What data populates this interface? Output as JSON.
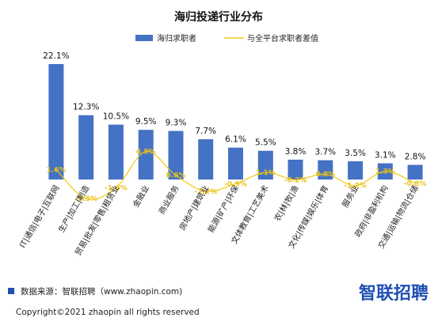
{
  "chart_data": {
    "type": "bar",
    "title": "海归投递行业分布",
    "categories": [
      "IT|通信|电子|互联网",
      "生产|加工|制造",
      "贸易|批发|零售|租赁业",
      "金融业",
      "商业服务",
      "房地产|建筑业",
      "能源|矿产|环保",
      "文体教育|工艺美术",
      "农|林|牧|渔",
      "文化|传媒|娱乐|体育",
      "服务业",
      "政府|非盈利机构",
      "交通|运输|物流|仓储"
    ],
    "series": [
      {
        "name": "海归求职者",
        "values": [
          22.1,
          12.3,
          10.5,
          9.5,
          9.3,
          7.7,
          6.1,
          5.5,
          3.8,
          3.7,
          3.5,
          3.1,
          2.8
        ],
        "labels": [
          "22.1%",
          "12.3%",
          "10.5%",
          "9.5%",
          "9.3%",
          "7.7%",
          "6.1%",
          "5.5%",
          "3.8%",
          "3.7%",
          "3.5%",
          "3.1%",
          "2.8%"
        ]
      },
      {
        "name": "与全平台求职者差值",
        "values": [
          1.6,
          -3.5,
          -1.6,
          4.8,
          0.6,
          -2.2,
          -0.9,
          1.1,
          -0.2,
          0.8,
          -1.2,
          1.3,
          -0.8
        ],
        "labels": [
          "1.6%",
          "-3.5%",
          "-1.6%",
          "4.8%",
          "0.6%",
          "-2.2%",
          "-0.9%",
          "1.1%",
          "-0.2%",
          "0.8%",
          "-1.2%",
          "1.3%",
          "-0.8%"
        ]
      }
    ],
    "colors": {
      "bars": "#4472c4",
      "line": "#f2c811",
      "line_labels": "#e8c21a"
    },
    "legend_position": "top",
    "grid": false
  },
  "footer": {
    "source": "数据来源：智联招聘（www.zhaopin.com)",
    "copyright": "Copyright©2021 zhaopin all rights reserved",
    "logo": "智联招聘"
  },
  "colors": {
    "brand_blue": "#1f4fb3",
    "source_marker": "#1f4fb3"
  }
}
